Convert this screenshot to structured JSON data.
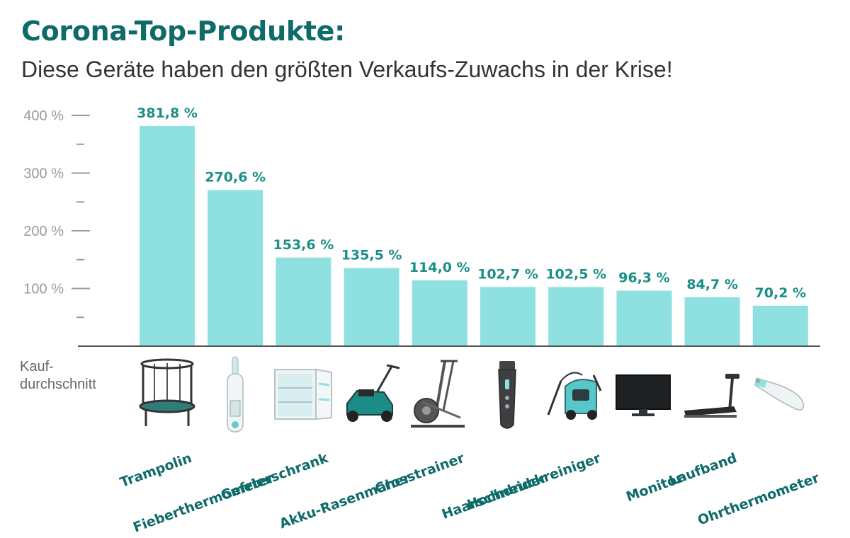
{
  "header": {
    "title": "Corona-Top-Produkte:",
    "subtitle": "Diese Geräte haben den  größten Verkaufs-Zuwachs in der Krise!"
  },
  "baseline_label": [
    "Kauf-",
    "durchschnitt"
  ],
  "colors": {
    "bar": "#8fe0e0",
    "title": "#0f6a6a",
    "value_label": "#1a8f87",
    "category_label": "#0f6a6a"
  },
  "icons": [
    "trampoline-icon",
    "fever-thermometer-icon",
    "freezer-icon",
    "lawn-mower-icon",
    "cross-trainer-icon",
    "hair-clipper-icon",
    "pressure-washer-icon",
    "monitor-icon",
    "treadmill-icon",
    "ear-thermometer-icon"
  ],
  "chart_data": {
    "type": "bar",
    "title": "Corona-Top-Produkte:",
    "subtitle": "Diese Geräte haben den  größten Verkaufs-Zuwachs in der Krise!",
    "categories": [
      "Trampolin",
      "Fieberthermometer",
      "Gefrierschrank",
      "Akku-Rasenmäher",
      "Crosstrainer",
      "Haarschneider",
      "Hochdruckreiniger",
      "Monitor",
      "Laufband",
      "Ohrthermometer"
    ],
    "values": [
      381.8,
      270.6,
      153.6,
      135.5,
      114.0,
      102.7,
      102.5,
      96.3,
      84.7,
      70.2
    ],
    "value_labels": [
      "381,8 %",
      "270,6 %",
      "153,6 %",
      "135,5 %",
      "114,0 %",
      "102,7 %",
      "102,5 %",
      "96,3 %",
      "84,7 %",
      "70,2 %"
    ],
    "yticks": [
      100,
      200,
      300,
      400
    ],
    "ytick_labels": [
      "100 %",
      "200 %",
      "300 %",
      "400 %"
    ],
    "ylim": [
      0,
      400
    ],
    "grid": false,
    "legend": "none"
  }
}
